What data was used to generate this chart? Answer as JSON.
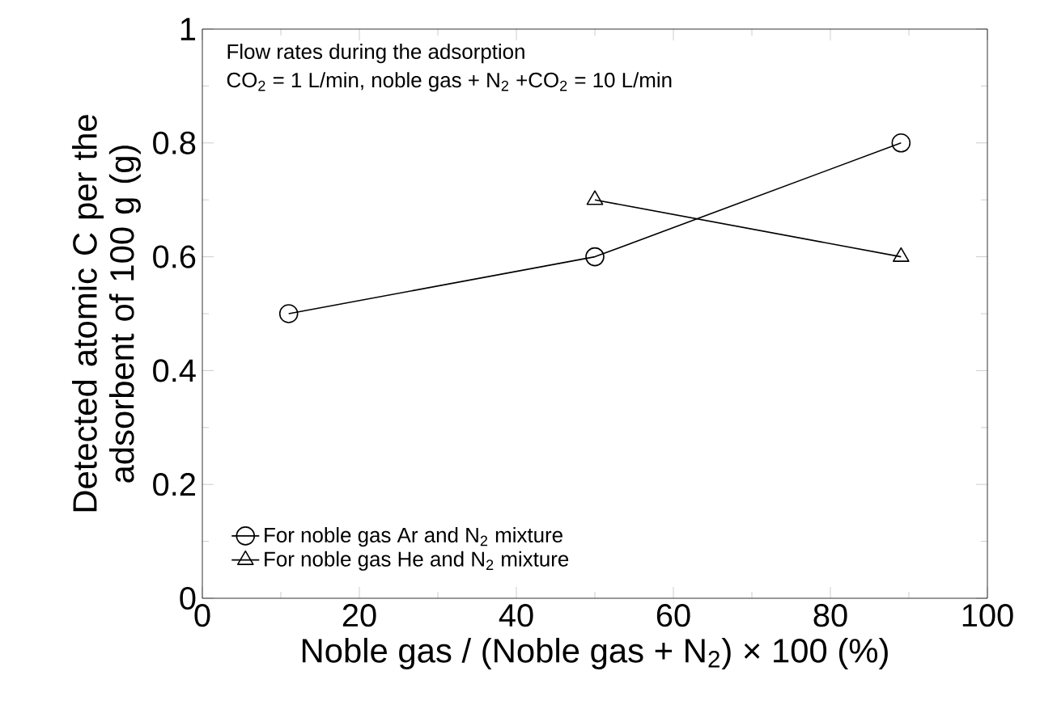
{
  "chart_data": {
    "type": "line",
    "xlabel": "Noble gas / (Noble gas + N$_{2}$) × 100 (%)",
    "ylabel": "Detected atomic C per the adsorbent of 100 g (g)",
    "xlim": [
      0,
      100
    ],
    "xticks": [
      0,
      20,
      40,
      60,
      80,
      100
    ],
    "ylim": [
      0,
      1
    ],
    "yticks": [
      0,
      0.2,
      0.4,
      0.6,
      0.8,
      1
    ],
    "annotations": [
      "Flow rates during the adsorption",
      "CO$_{2}$ = 1 L/min, noble gas + N$_{2}$ +CO$_{2}$ = 10 L/min"
    ],
    "legend": "bottom left",
    "line_style": "solid",
    "series": [
      {
        "name": "For noble gas Ar and N$_{2}$ mixture",
        "color": "#000000",
        "marker": "circle",
        "x": [
          11,
          50,
          89
        ],
        "values": [
          0.5,
          0.6,
          0.8
        ]
      },
      {
        "name": "For noble gas He and N$_{2}$ mixture",
        "color": "#000000",
        "marker": "triangle",
        "x": [
          50,
          89
        ],
        "values": [
          0.7,
          0.6
        ]
      }
    ]
  }
}
